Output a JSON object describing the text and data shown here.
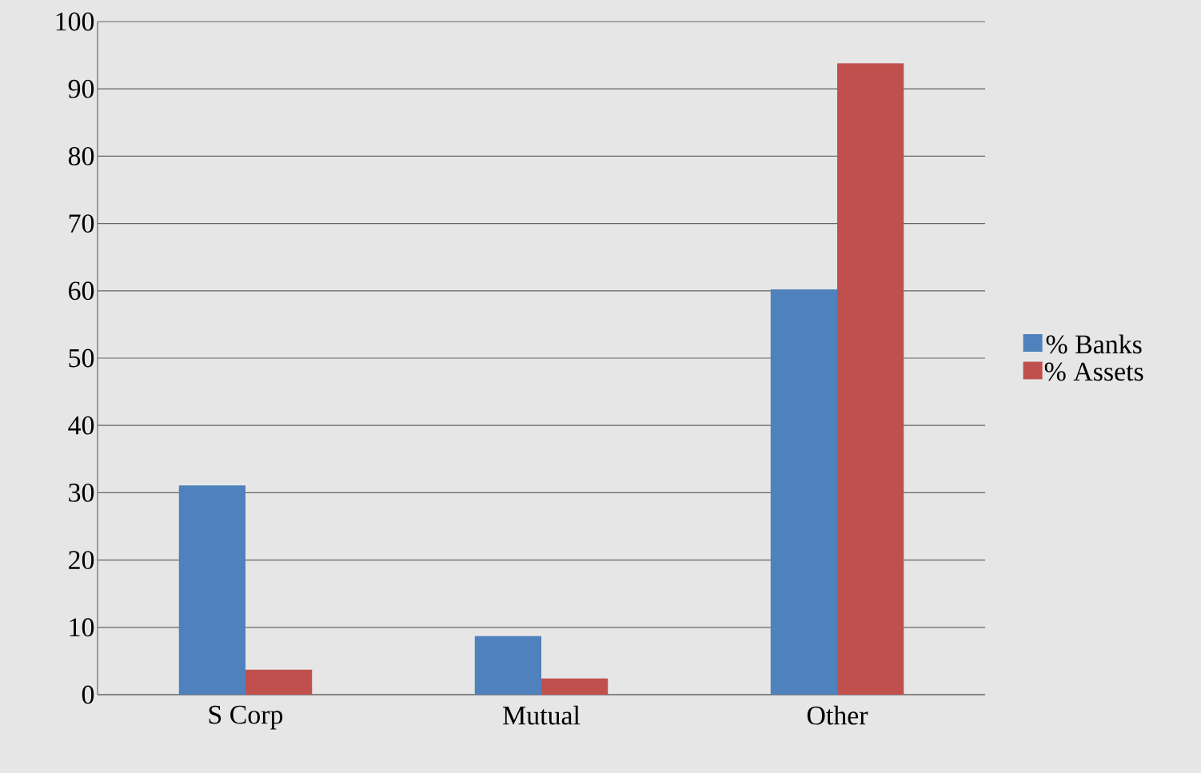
{
  "chart_data": {
    "type": "bar",
    "categories": [
      "S Corp",
      "Mutual",
      "Other"
    ],
    "series": [
      {
        "name": "% Banks",
        "color": "#4f81bd",
        "values": [
          31.1,
          8.7,
          60.2
        ]
      },
      {
        "name": "% Assets",
        "color": "#c0504d",
        "values": [
          3.7,
          2.4,
          93.8
        ]
      }
    ],
    "ylim": [
      0,
      100
    ],
    "yticks": [
      0,
      10,
      20,
      30,
      40,
      50,
      60,
      70,
      80,
      90,
      100
    ],
    "grid": "y",
    "legend": "right"
  }
}
